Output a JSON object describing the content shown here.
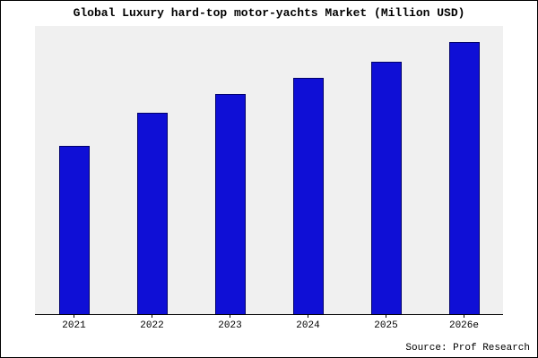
{
  "chart_data": {
    "type": "bar",
    "title": "Global Luxury hard-top motor-yachts Market (Million USD)",
    "categories": [
      "2021",
      "2022",
      "2023",
      "2024",
      "2025",
      "2026e"
    ],
    "values": [
      62,
      74,
      81,
      87,
      93,
      100
    ],
    "xlabel": "",
    "ylabel": "",
    "ylim": [
      0,
      106
    ],
    "grid": false,
    "legend": false,
    "note": "no y-axis tick labels shown; values estimated relative to tallest bar = 100"
  },
  "colors": {
    "bar_fill": "#0f0fd6",
    "bar_border": "#00006b",
    "plot_bg": "#f0f0f0",
    "frame_border": "#000000"
  },
  "footer": {
    "source": "Source: Prof Research"
  }
}
